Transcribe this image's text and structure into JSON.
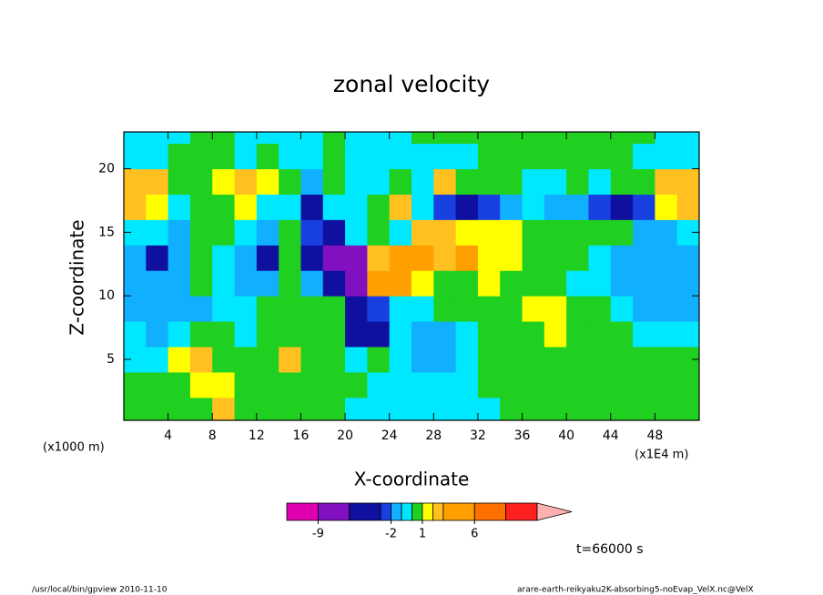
{
  "chart_data": {
    "type": "contour",
    "title": "zonal velocity",
    "xlabel": "X-coordinate",
    "ylabel": "Z-coordinate",
    "xunit": "(x1E4 m)",
    "yunit": "(x1000 m)",
    "annotation": "t=66000 s",
    "footer_left": "/usr/local/bin/gpview  2010-11-10",
    "footer_right": "arare-earth-reikyaku2K-absorbing5-noEvap_VelX.nc@VelX",
    "xlim": [
      0,
      52
    ],
    "ylim": [
      0.2,
      22.9
    ],
    "xticks": [
      4,
      8,
      12,
      16,
      20,
      24,
      28,
      32,
      36,
      40,
      44,
      48
    ],
    "yticks": [
      5,
      10,
      15,
      20
    ],
    "x": [
      1,
      3,
      5,
      7,
      9,
      11,
      13,
      15,
      17,
      19,
      21,
      23,
      25,
      27,
      29,
      31,
      33,
      35,
      37,
      39,
      41,
      43,
      45,
      47,
      49,
      51
    ],
    "y": [
      1,
      3,
      5,
      7,
      9,
      11,
      13,
      15,
      17,
      19,
      21,
      23
    ],
    "z": [
      [
        0.5,
        0.5,
        0.5,
        0.5,
        2.5,
        0.5,
        0.5,
        0.5,
        0.5,
        0.5,
        -0.5,
        -0.5,
        -0.5,
        -0.5,
        -0.5,
        -0.5,
        -0.5,
        0.5,
        0.5,
        0.5,
        0.5,
        0.5,
        0.5,
        0.5,
        0.5,
        0.5
      ],
      [
        0.5,
        0.5,
        0.5,
        1.5,
        1.5,
        0.5,
        0.5,
        0.5,
        0.5,
        0.5,
        0.5,
        -0.5,
        -0.5,
        -0.5,
        -0.5,
        -0.5,
        0.5,
        0.5,
        0.5,
        0.5,
        0.5,
        0.5,
        0.5,
        0.5,
        0.5,
        0.5
      ],
      [
        -0.5,
        -0.5,
        1.5,
        2.5,
        0.5,
        0.5,
        0.5,
        2.5,
        0.5,
        0.5,
        -0.5,
        0.5,
        -0.5,
        -1.5,
        -1.5,
        -0.5,
        0.5,
        0.5,
        0.5,
        0.5,
        0.5,
        0.5,
        0.5,
        0.5,
        0.5,
        0.5
      ],
      [
        -0.5,
        -1.5,
        -0.5,
        0.5,
        0.5,
        -0.5,
        0.5,
        0.5,
        0.5,
        0.5,
        -4.5,
        -4.5,
        -0.5,
        -1.5,
        -1.5,
        -0.5,
        0.5,
        0.5,
        0.5,
        1.5,
        0.5,
        0.5,
        0.5,
        -0.5,
        -0.5,
        -0.5
      ],
      [
        -1.5,
        -1.5,
        -1.5,
        -1.5,
        -0.5,
        -0.5,
        0.5,
        0.5,
        0.5,
        0.5,
        -4.5,
        -2.5,
        -0.5,
        -0.5,
        0.5,
        0.5,
        0.5,
        0.5,
        1.5,
        1.5,
        0.5,
        0.5,
        -0.5,
        -1.5,
        -1.5,
        -1.5
      ],
      [
        -1.5,
        -1.5,
        -1.5,
        0.5,
        -0.5,
        -1.5,
        -1.5,
        0.5,
        -1.5,
        -4.5,
        -7.5,
        4.5,
        4.5,
        1.5,
        0.5,
        0.5,
        1.5,
        0.5,
        0.5,
        0.5,
        -0.5,
        -0.5,
        -1.5,
        -1.5,
        -1.5,
        -1.5
      ],
      [
        -1.5,
        -4.5,
        -1.5,
        0.5,
        -0.5,
        -1.5,
        -4.5,
        0.5,
        -4.5,
        -7.5,
        -7.5,
        2.5,
        4.5,
        4.5,
        2.5,
        4.5,
        1.5,
        1.5,
        0.5,
        0.5,
        0.5,
        -0.5,
        -1.5,
        -1.5,
        -1.5,
        -1.5
      ],
      [
        -0.5,
        -0.5,
        -1.5,
        0.5,
        0.5,
        -0.5,
        -1.5,
        0.5,
        -2.5,
        -4.5,
        -0.5,
        0.5,
        -0.5,
        2.5,
        2.5,
        1.5,
        1.5,
        1.5,
        0.5,
        0.5,
        0.5,
        0.5,
        0.5,
        -1.5,
        -1.5,
        -0.5
      ],
      [
        2.5,
        1.5,
        -0.5,
        0.5,
        0.5,
        1.5,
        -0.5,
        -0.5,
        -4.5,
        -0.5,
        -0.5,
        0.5,
        2.5,
        -0.5,
        -2.5,
        -4.5,
        -2.5,
        -1.5,
        -0.5,
        -1.5,
        -1.5,
        -2.5,
        -4.5,
        -2.5,
        1.5,
        2.5
      ],
      [
        2.5,
        2.5,
        0.5,
        0.5,
        1.5,
        2.5,
        1.5,
        0.5,
        -1.5,
        0.5,
        -0.5,
        -0.5,
        0.5,
        -0.5,
        2.5,
        0.5,
        0.5,
        0.5,
        -0.5,
        -0.5,
        0.5,
        -0.5,
        0.5,
        0.5,
        2.5,
        2.5
      ],
      [
        -0.5,
        -0.5,
        0.5,
        0.5,
        0.5,
        -0.5,
        0.5,
        -0.5,
        -0.5,
        0.5,
        -0.5,
        -0.5,
        -0.5,
        -0.5,
        -0.5,
        -0.5,
        0.5,
        0.5,
        0.5,
        0.5,
        0.5,
        0.5,
        0.5,
        -0.5,
        -0.5,
        -0.5
      ],
      [
        -0.5,
        -0.5,
        -0.5,
        0.5,
        0.5,
        -0.5,
        -0.5,
        -0.5,
        -0.5,
        0.5,
        -0.5,
        -0.5,
        -0.5,
        0.5,
        0.5,
        0.5,
        0.5,
        0.5,
        0.5,
        0.5,
        0.5,
        0.5,
        0.5,
        0.5,
        -0.5,
        -0.5
      ]
    ],
    "colorbar": {
      "bounds": [
        -12,
        -9,
        -6,
        -3,
        -2,
        -1,
        0,
        1,
        2,
        3,
        6,
        9,
        12
      ],
      "colors": [
        "#e000b0",
        "#8010c0",
        "#1010a0",
        "#1840e0",
        "#10b0ff",
        "#00e8ff",
        "#20d020",
        "#ffff00",
        "#ffc020",
        "#ffa000",
        "#ff7000",
        "#ff2020"
      ],
      "extend_color": "#ffb0b0",
      "ticks": [
        -9,
        -2,
        1,
        6
      ]
    }
  }
}
